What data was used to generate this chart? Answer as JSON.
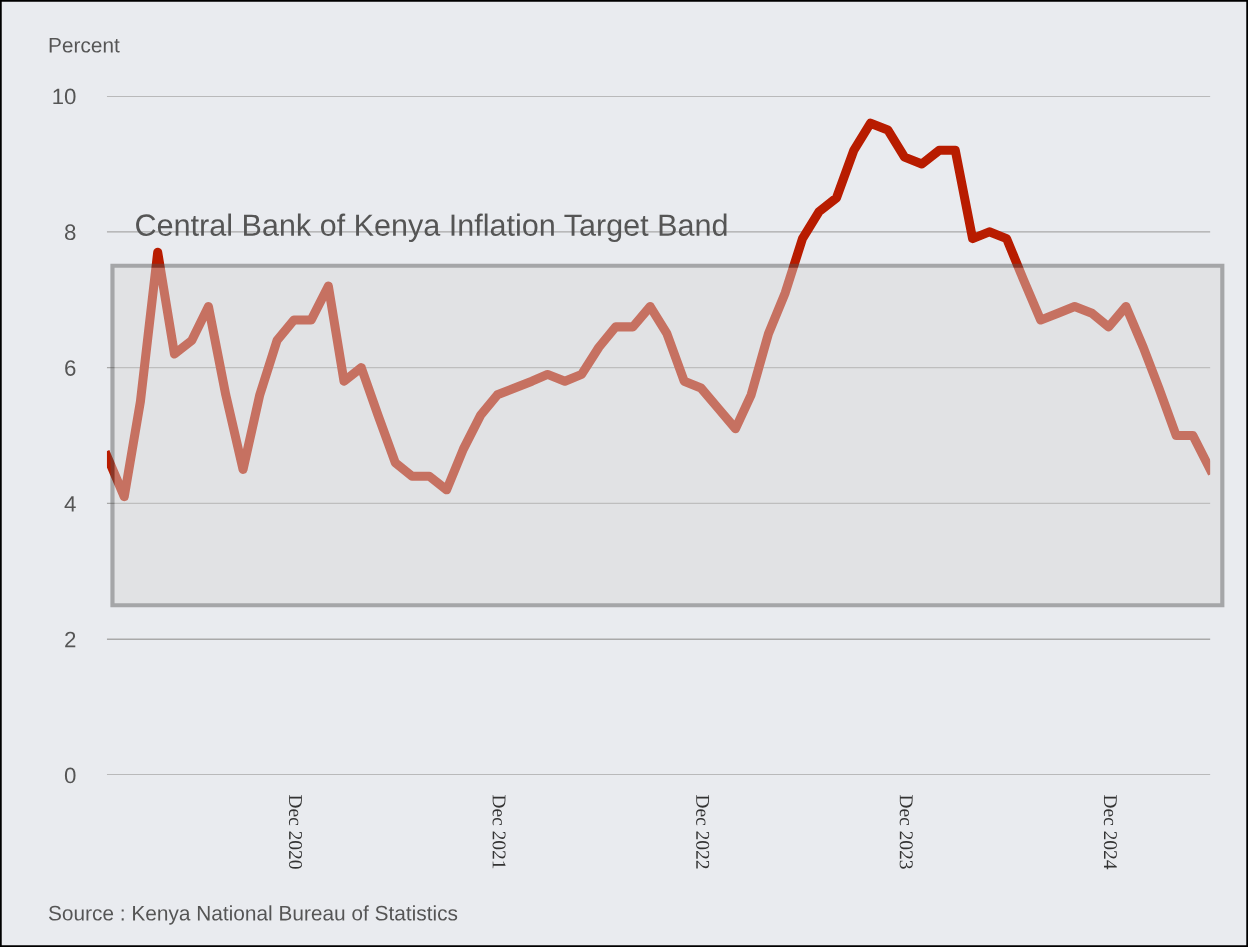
{
  "chart_data": {
    "type": "line",
    "ylabel": "Percent",
    "x": [
      "2020-01",
      "2020-02",
      "2020-03",
      "2020-04",
      "2020-05",
      "2020-06",
      "2020-07",
      "2020-08",
      "2020-09",
      "2020-10",
      "2020-11",
      "2020-12",
      "2021-01",
      "2021-02",
      "2021-03",
      "2021-04",
      "2021-05",
      "2021-06",
      "2021-07",
      "2021-08",
      "2021-09",
      "2021-10",
      "2021-11",
      "2021-12",
      "2022-01",
      "2022-02",
      "2022-03",
      "2022-04",
      "2022-05",
      "2022-06",
      "2022-07",
      "2022-08",
      "2022-09",
      "2022-10",
      "2022-11",
      "2022-12",
      "2023-01",
      "2023-02",
      "2023-03",
      "2023-04",
      "2023-05",
      "2023-06",
      "2023-07",
      "2023-08",
      "2023-09",
      "2023-10",
      "2023-11",
      "2023-12",
      "2024-01",
      "2024-02",
      "2024-03",
      "2024-04",
      "2024-05",
      "2024-06",
      "2024-07",
      "2024-08",
      "2024-09",
      "2024-10",
      "2024-11",
      "2024-12",
      "2025-01",
      "2025-02",
      "2025-03",
      "2025-04",
      "2025-05",
      "2025-06"
    ],
    "series": [
      {
        "color": "#b81c00",
        "values": [
          4.7,
          4.1,
          5.5,
          7.7,
          6.2,
          6.4,
          6.9,
          5.6,
          4.5,
          5.6,
          6.4,
          6.7,
          6.7,
          7.2,
          5.8,
          6.0,
          5.3,
          4.6,
          4.4,
          4.4,
          4.2,
          4.8,
          5.3,
          5.6,
          5.7,
          5.8,
          5.9,
          5.8,
          5.9,
          6.3,
          6.6,
          6.6,
          6.9,
          6.5,
          5.8,
          5.7,
          5.4,
          5.1,
          5.6,
          6.5,
          7.1,
          7.9,
          8.3,
          8.5,
          9.2,
          9.6,
          9.5,
          9.1,
          9.0,
          9.2,
          9.2,
          7.9,
          8.0,
          7.9,
          7.3,
          6.7,
          6.8,
          6.9,
          6.8,
          6.6,
          6.9,
          6.3,
          5.7,
          5.0,
          5.0,
          4.5
        ]
      }
    ],
    "xlim": [
      "2020-01",
      "2025-06"
    ],
    "xticks": [
      {
        "value": "2020-12",
        "label": "Dec 2020"
      },
      {
        "value": "2021-12",
        "label": "Dec 2021"
      },
      {
        "value": "2022-12",
        "label": "Dec 2022"
      },
      {
        "value": "2023-12",
        "label": "Dec 2023"
      },
      {
        "value": "2024-12",
        "label": "Dec 2024"
      }
    ],
    "ylim": [
      0,
      10
    ],
    "yticks": [
      0,
      2,
      4,
      6,
      8,
      10
    ],
    "grid": "y",
    "legend": false,
    "marker": "none",
    "line_style": "solid",
    "bands": [
      {
        "axis": "y",
        "from": 2.5,
        "to": 7.5,
        "label": "Central Bank of Kenya Inflation Target Band",
        "color": "#d8d8d8"
      }
    ],
    "annotations": [
      "Source : Kenya National Bureau of Statistics"
    ]
  }
}
